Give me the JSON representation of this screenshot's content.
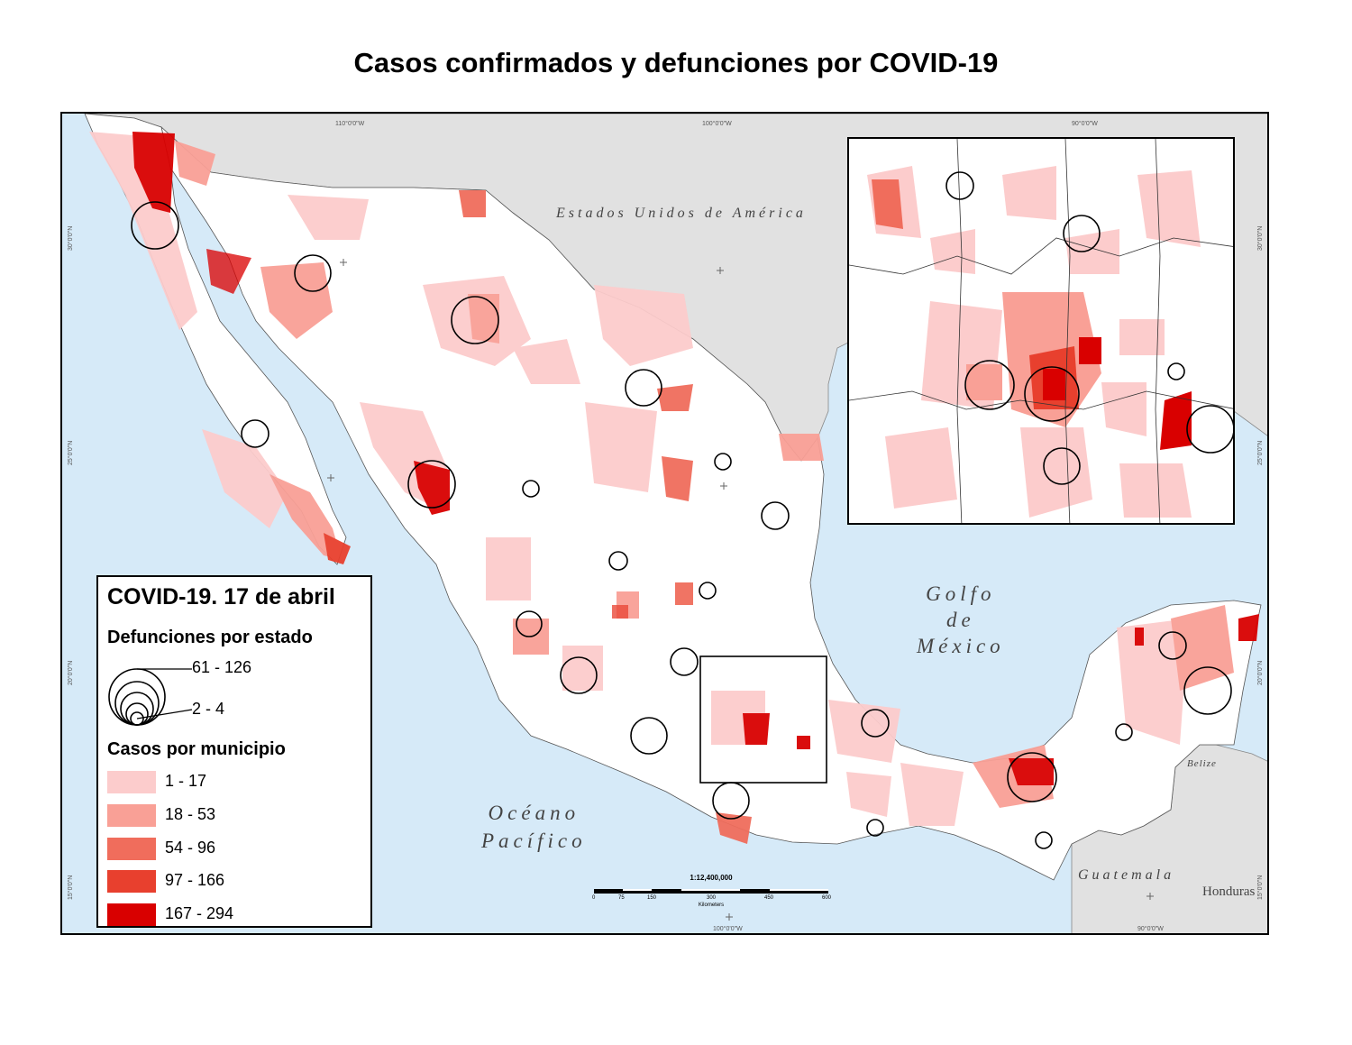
{
  "title": "Casos confirmados y defunciones por COVID-19",
  "map": {
    "country_labels": {
      "usa": "Estados Unidos de América",
      "guatemala": "Guatemala",
      "honduras": "Honduras",
      "belize": "Belize"
    },
    "water_labels": {
      "golfo": [
        "Golfo",
        "de",
        "México"
      ],
      "oceano": [
        "Océano",
        "Pacífico"
      ]
    },
    "graticule": {
      "top": [
        "110°0'0\"W",
        "100°0'0\"W",
        "90°0'0\"W"
      ],
      "bottom": [
        "100°0'0\"W",
        "90°0'0\"W"
      ],
      "left": [
        "30°0'0\"N",
        "25°0'0\"N",
        "20°0'0\"N",
        "15°0'0\"N"
      ],
      "right": [
        "30°0'0\"N",
        "25°0'0\"N",
        "20°0'0\"N",
        "15°0'0\"N"
      ]
    },
    "scale": {
      "ratio": "1:12,400,000",
      "ticks": [
        "0",
        "75",
        "150",
        "300",
        "450",
        "600"
      ],
      "unit": "Kilometers"
    },
    "colors": {
      "water": "#d6eaf8",
      "foreign_land": "#e1e1e1",
      "mexico_land": "#ffffff",
      "class_1": "#fccccc",
      "class_2": "#f9a096",
      "class_3": "#f06d5c",
      "class_4": "#e8402e",
      "class_5": "#d90000"
    }
  },
  "legend": {
    "title": "COVID-19. 17 de abril",
    "deaths_heading": "Defunciones por estado",
    "deaths_max_label": "61 - 126",
    "deaths_min_label": "2 - 4",
    "cases_heading": "Casos por municipio",
    "case_classes": [
      {
        "label": "1 - 17",
        "color": "#fccccc"
      },
      {
        "label": "18 - 53",
        "color": "#f9a096"
      },
      {
        "label": "54 - 96",
        "color": "#f06d5c"
      },
      {
        "label": "97 - 166",
        "color": "#e8402e"
      },
      {
        "label": "167 - 294",
        "color": "#d90000"
      }
    ]
  }
}
